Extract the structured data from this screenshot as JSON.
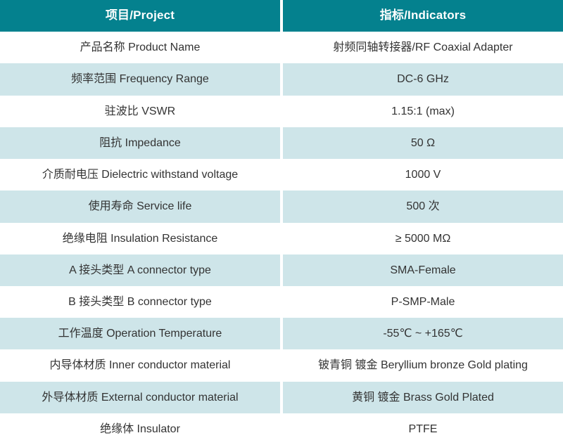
{
  "colors": {
    "header_bg": "#04818E",
    "header_text": "#FFFFFF",
    "alt_row_bg": "#CEE5E9",
    "row_bg": "#FFFFFF",
    "cell_text": "#333333",
    "divider": "#FFFFFF"
  },
  "table": {
    "headers": {
      "project": "项目/Project",
      "indicators": "指标/Indicators"
    },
    "rows": [
      {
        "project": "产品名称 Product Name",
        "indicator": "射频同轴转接器/RF Coaxial Adapter"
      },
      {
        "project": "频率范围 Frequency Range",
        "indicator": "DC-6 GHz"
      },
      {
        "project": "驻波比 VSWR",
        "indicator": "1.15:1 (max)"
      },
      {
        "project": "阻抗 Impedance",
        "indicator": "50 Ω"
      },
      {
        "project": "介质耐电压 Dielectric withstand voltage",
        "indicator": "1000 V"
      },
      {
        "project": "使用寿命 Service life",
        "indicator": "500 次"
      },
      {
        "project": "绝缘电阻 Insulation Resistance",
        "indicator": "≥ 5000 MΩ"
      },
      {
        "project": "A 接头类型  A connector type",
        "indicator": "SMA-Female"
      },
      {
        "project": "B 接头类型  B connector type",
        "indicator": "P-SMP-Male"
      },
      {
        "project": "工作温度 Operation Temperature",
        "indicator": "-55℃ ~ +165℃"
      },
      {
        "project": "内导体材质 Inner conductor material",
        "indicator": "铍青铜 镀金 Beryllium bronze Gold plating"
      },
      {
        "project": "外导体材质 External conductor material",
        "indicator": "黄铜 镀金 Brass Gold Plated"
      },
      {
        "project": "绝缘体 Insulator",
        "indicator": "PTFE"
      }
    ]
  }
}
